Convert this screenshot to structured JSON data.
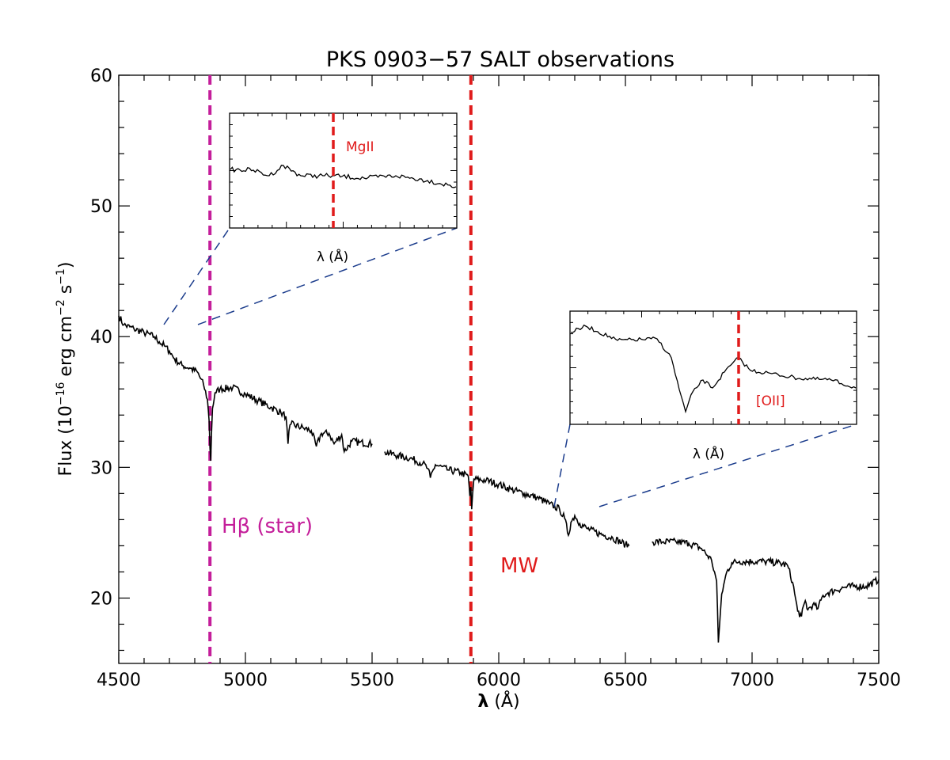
{
  "chart_data": {
    "type": "line",
    "title": "PKS 0903−57 SALT observations",
    "xlabel_symbol": "λ",
    "xlabel_unit": "(Å)",
    "ylabel_main": "Flux (10",
    "ylabel_exp1": "−16",
    "ylabel_mid": " erg  cm",
    "ylabel_exp2": "−2",
    "ylabel_mid2": " s",
    "ylabel_exp3": "−1",
    "ylabel_close": ")",
    "xlim": [
      4500,
      7500
    ],
    "ylim": [
      15,
      60
    ],
    "xticks": [
      "4500",
      "5000",
      "5500",
      "6000",
      "6500",
      "7000",
      "7500"
    ],
    "yticks": [
      "20",
      "30",
      "40",
      "50",
      "60"
    ],
    "series": [
      {
        "segments": [
          [
            [
              4500,
              41.6
            ],
            [
              4520,
              40.9
            ],
            [
              4560,
              40.6
            ],
            [
              4600,
              40.3
            ],
            [
              4640,
              40.0
            ],
            [
              4660,
              39.6
            ],
            [
              4680,
              39.3
            ],
            [
              4700,
              38.9
            ],
            [
              4720,
              38.3
            ],
            [
              4750,
              37.8
            ],
            [
              4780,
              37.6
            ],
            [
              4810,
              37.3
            ],
            [
              4835,
              36.3
            ],
            [
              4850,
              35.2
            ],
            [
              4857,
              33.5
            ],
            [
              4860,
              31.5
            ],
            [
              4863,
              30.5
            ],
            [
              4866,
              32.5
            ],
            [
              4870,
              34.5
            ],
            [
              4880,
              35.7
            ],
            [
              4900,
              36.0
            ],
            [
              4950,
              36.1
            ],
            [
              5000,
              35.6
            ],
            [
              5050,
              35.1
            ],
            [
              5100,
              34.6
            ],
            [
              5140,
              34.2
            ],
            [
              5160,
              33.9
            ],
            [
              5168,
              31.8
            ],
            [
              5172,
              32.8
            ],
            [
              5180,
              33.3
            ],
            [
              5230,
              33.0
            ],
            [
              5260,
              32.8
            ],
            [
              5280,
              31.6
            ],
            [
              5300,
              32.6
            ],
            [
              5330,
              32.6
            ],
            [
              5350,
              31.8
            ],
            [
              5380,
              32.5
            ],
            [
              5390,
              31.2
            ],
            [
              5420,
              32.0
            ],
            [
              5450,
              31.9
            ],
            [
              5500,
              31.8
            ]
          ],
          [
            [
              5550,
              31.2
            ],
            [
              5600,
              30.9
            ],
            [
              5650,
              30.7
            ],
            [
              5700,
              30.3
            ],
            [
              5720,
              29.9
            ],
            [
              5730,
              29.2
            ],
            [
              5750,
              30.2
            ],
            [
              5800,
              29.8
            ],
            [
              5850,
              29.6
            ],
            [
              5880,
              29.3
            ],
            [
              5886,
              27.8
            ],
            [
              5890,
              28.5
            ],
            [
              5893,
              26.8
            ],
            [
              5897,
              28.0
            ],
            [
              5902,
              29.1
            ],
            [
              5950,
              29.0
            ],
            [
              6000,
              28.7
            ],
            [
              6050,
              28.3
            ],
            [
              6100,
              28.0
            ],
            [
              6150,
              27.7
            ],
            [
              6200,
              27.2
            ],
            [
              6240,
              26.8
            ],
            [
              6260,
              26.1
            ],
            [
              6275,
              24.8
            ],
            [
              6285,
              25.8
            ],
            [
              6300,
              26.3
            ],
            [
              6320,
              25.7
            ],
            [
              6350,
              25.3
            ],
            [
              6400,
              24.9
            ],
            [
              6450,
              24.6
            ],
            [
              6500,
              24.1
            ],
            [
              6515,
              24.0
            ]
          ],
          [
            [
              6605,
              24.3
            ],
            [
              6650,
              24.3
            ],
            [
              6700,
              24.3
            ],
            [
              6750,
              24.2
            ],
            [
              6800,
              23.8
            ],
            [
              6840,
              22.9
            ],
            [
              6860,
              21.3
            ],
            [
              6867,
              16.6
            ],
            [
              6872,
              18.0
            ],
            [
              6880,
              20.3
            ],
            [
              6900,
              22.0
            ],
            [
              6920,
              22.7
            ],
            [
              6950,
              22.8
            ],
            [
              7000,
              22.8
            ],
            [
              7050,
              22.8
            ],
            [
              7100,
              22.7
            ],
            [
              7140,
              22.5
            ],
            [
              7160,
              21.2
            ],
            [
              7180,
              19.0
            ],
            [
              7195,
              18.6
            ],
            [
              7210,
              19.8
            ],
            [
              7220,
              19.1
            ],
            [
              7240,
              19.5
            ],
            [
              7260,
              19.2
            ],
            [
              7280,
              20.2
            ],
            [
              7300,
              20.4
            ],
            [
              7330,
              20.6
            ],
            [
              7360,
              20.8
            ],
            [
              7400,
              20.9
            ],
            [
              7450,
              20.9
            ],
            [
              7500,
              21.4
            ]
          ]
        ]
      }
    ],
    "vlines": [
      {
        "x": 4860,
        "color": "#c41e9a",
        "label": "Hβ (star)"
      },
      {
        "x": 5890,
        "color": "#e01b1b",
        "label": "MW"
      }
    ],
    "insets": [
      {
        "line_label": "MgII",
        "line_color": "#e01b1b",
        "xlabel": "λ (Å)",
        "connector_color": "#1b3c8c"
      },
      {
        "line_label": "[OII]",
        "line_color": "#e01b1b",
        "xlabel": "λ (Å)",
        "connector_color": "#1b3c8c"
      }
    ]
  }
}
